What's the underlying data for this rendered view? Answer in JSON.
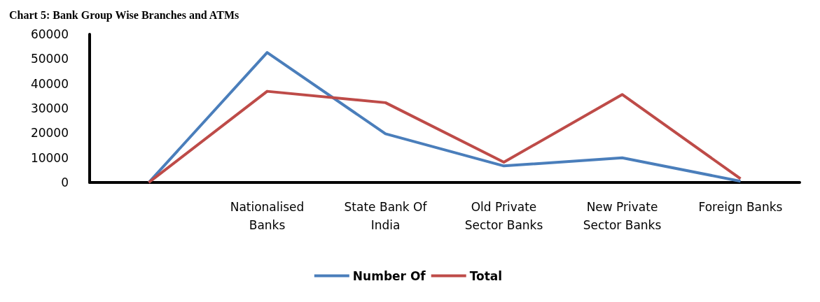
{
  "chart_data": {
    "type": "line",
    "title": "Chart 5: Bank Group Wise Branches and ATMs",
    "categories": [
      null,
      "Nationalised Banks",
      "State Bank Of India",
      "Old Private Sector Banks",
      "New Private Sector Banks",
      "Foreign Banks"
    ],
    "series": [
      {
        "name": "Number Of",
        "color": "#4a7ebb",
        "values": [
          0,
          52600,
          19700,
          6700,
          10000,
          500
        ]
      },
      {
        "name": "Total",
        "color": "#be4b48",
        "values": [
          0,
          36900,
          32300,
          8200,
          35600,
          1500
        ]
      }
    ],
    "ylim": [
      0,
      60000
    ],
    "yticks": [
      0,
      10000,
      20000,
      30000,
      40000,
      50000,
      60000
    ],
    "grid": false,
    "legend": "bottom",
    "marker": "none",
    "line_style": "solid"
  }
}
